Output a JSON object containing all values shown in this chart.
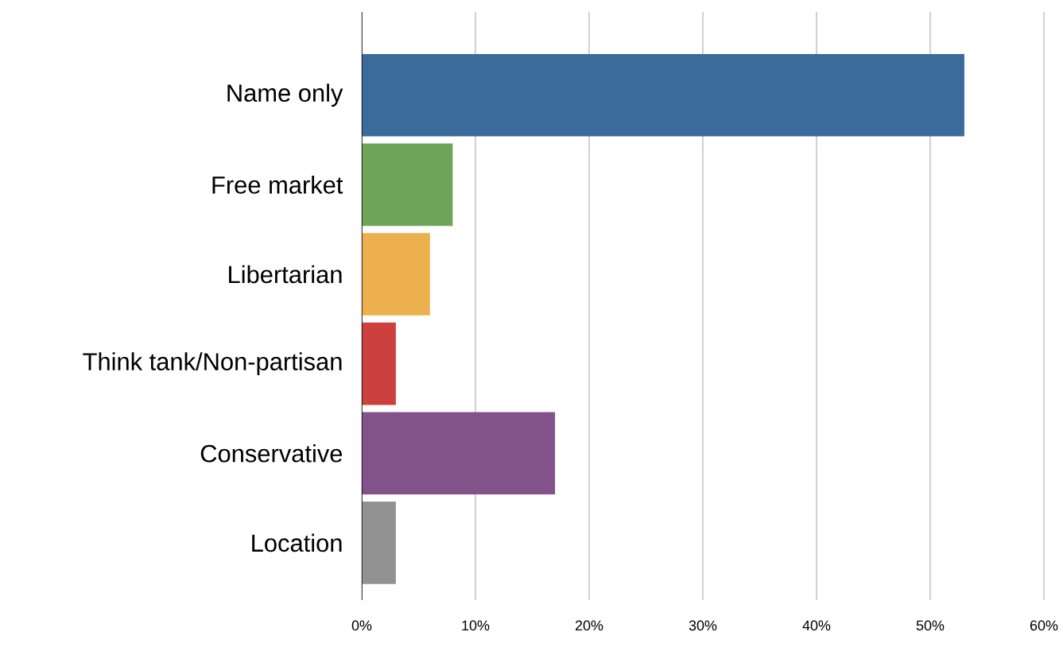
{
  "chart_data": {
    "type": "bar",
    "orientation": "horizontal",
    "categories": [
      "Name only",
      "Free market",
      "Libertarian",
      "Think tank/Non-partisan",
      "Conservative",
      "Location"
    ],
    "values": [
      53,
      8,
      6,
      3,
      17,
      3
    ],
    "colors": [
      "#3a6b9a",
      "#6ea55a",
      "#ecb04e",
      "#cc413d",
      "#83528a",
      "#929292"
    ],
    "xlim": [
      0,
      60
    ],
    "xticks": [
      {
        "value": 0,
        "label": "0%"
      },
      {
        "value": 10,
        "label": "10%"
      },
      {
        "value": 20,
        "label": "20%"
      },
      {
        "value": 30,
        "label": "30%"
      },
      {
        "value": 40,
        "label": "40%"
      },
      {
        "value": 50,
        "label": "50%"
      },
      {
        "value": 60,
        "label": "60%"
      }
    ],
    "grid": "x"
  }
}
